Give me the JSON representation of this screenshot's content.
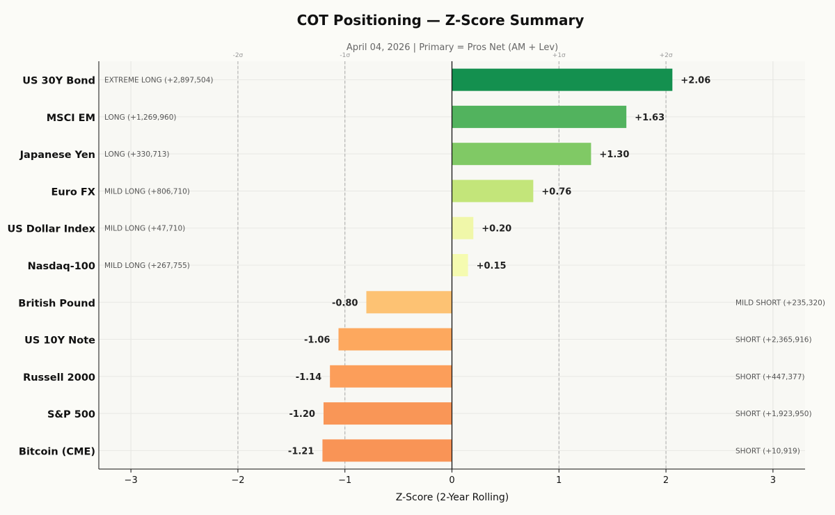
{
  "chart_data": {
    "type": "bar",
    "orientation": "horizontal",
    "title": "COT Positioning — Z-Score Summary",
    "subtitle": "April 04, 2026 | Primary = Pros Net (AM + Lev)",
    "xlabel": "Z-Score (2-Year Rolling)",
    "xlim": [
      -3.3,
      3.3
    ],
    "xticks": [
      -3,
      -2,
      -1,
      0,
      1,
      2,
      3
    ],
    "xtick_labels": [
      "−3",
      "−2",
      "−1",
      "0",
      "1",
      "2",
      "3"
    ],
    "sigma_lines": [
      {
        "x": -2,
        "label": "-2σ"
      },
      {
        "x": -1,
        "label": "-1σ"
      },
      {
        "x": 1,
        "label": "+1σ"
      },
      {
        "x": 2,
        "label": "+2σ"
      }
    ],
    "grid": true,
    "categories": [
      "US 30Y Bond",
      "MSCI EM",
      "Japanese Yen",
      "Euro FX",
      "US Dollar Index",
      "Nasdaq-100",
      "British Pound",
      "US 10Y Note",
      "Russell 2000",
      "S&P 500",
      "Bitcoin (CME)"
    ],
    "values": [
      2.06,
      1.63,
      1.3,
      0.76,
      0.2,
      0.15,
      -0.8,
      -1.06,
      -1.14,
      -1.2,
      -1.21
    ],
    "value_labels": [
      "+2.06",
      "+1.63",
      "+1.30",
      "+0.76",
      "+0.20",
      "+0.15",
      "-0.80",
      "-1.06",
      "-1.14",
      "-1.20",
      "-1.21"
    ],
    "annotations": [
      "EXTREME LONG (+2,897,504)",
      "LONG (+1,269,960)",
      "LONG (+330,713)",
      "MILD LONG (+806,710)",
      "MILD LONG (+47,710)",
      "MILD LONG (+267,755)",
      "MILD SHORT (+235,320)",
      "SHORT (+2,365,916)",
      "SHORT (+447,377)",
      "SHORT (+1,923,950)",
      "SHORT (+10,919)"
    ],
    "colors": [
      "#14904f",
      "#52b35e",
      "#80c965",
      "#c3e57a",
      "#f0f7a9",
      "#f5fbb0",
      "#fdc273",
      "#fda85e",
      "#fc9e5a",
      "#f99657",
      "#f99456"
    ]
  }
}
